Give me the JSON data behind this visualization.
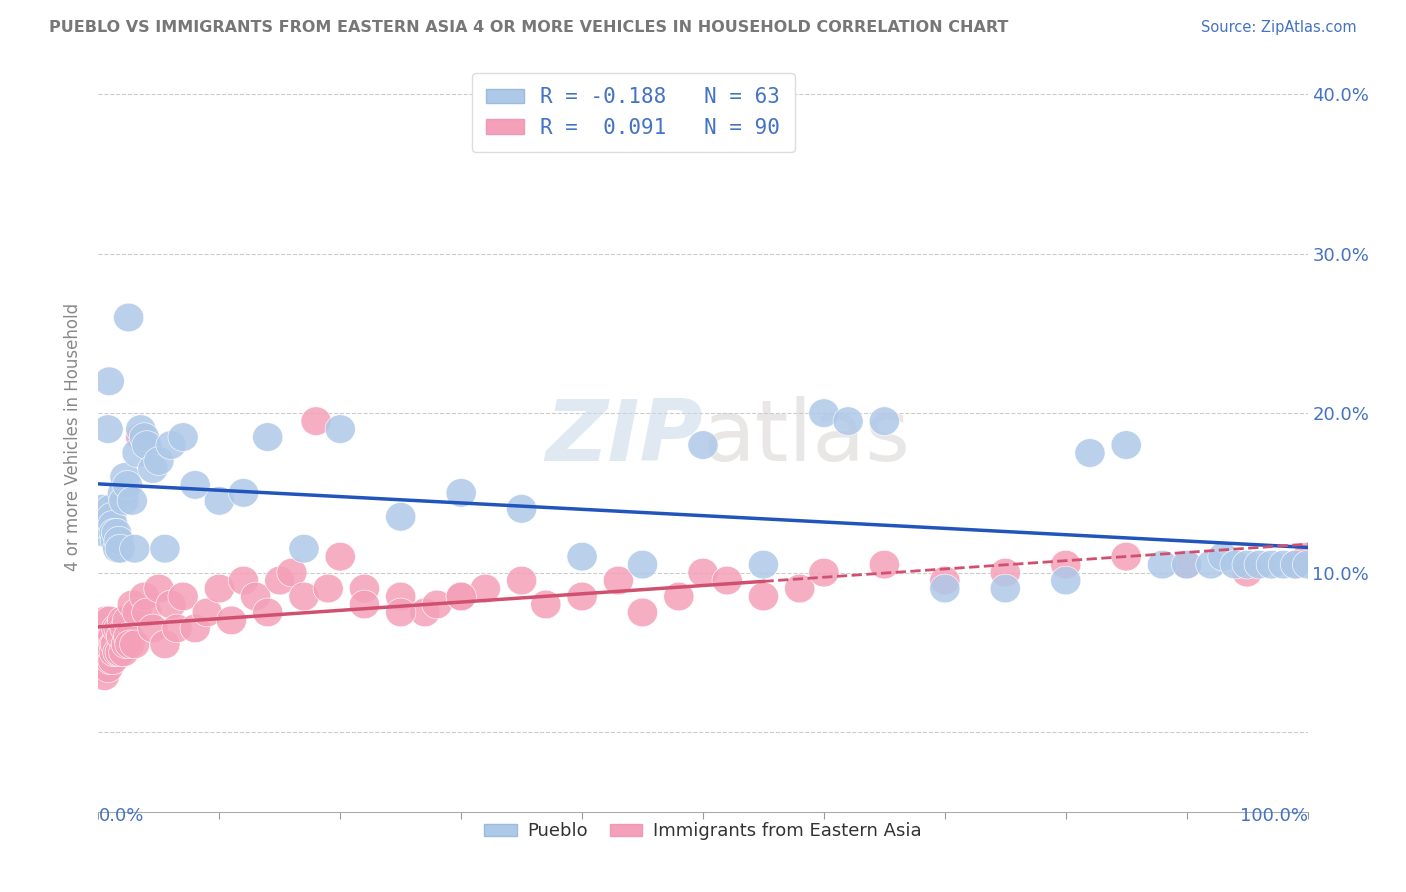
{
  "title": "PUEBLO VS IMMIGRANTS FROM EASTERN ASIA 4 OR MORE VEHICLES IN HOUSEHOLD CORRELATION CHART",
  "source": "Source: ZipAtlas.com",
  "ylabel": "4 or more Vehicles in Household",
  "legend_series1": "Pueblo",
  "legend_series2": "Immigrants from Eastern Asia",
  "legend_r1": "R = -0.188",
  "legend_n1": "N = 63",
  "legend_r2": "R =  0.091",
  "legend_n2": "N = 90",
  "blue_scatter_color": "#aec8e8",
  "pink_scatter_color": "#f4a0b8",
  "blue_line_color": "#2255bb",
  "pink_line_color": "#d05070",
  "title_color": "#777777",
  "axis_tick_color": "#4472c4",
  "background_color": "#ffffff",
  "grid_color": "#cccccc",
  "xlim": [
    0,
    100
  ],
  "ylim": [
    -5,
    42
  ],
  "ytick_positions": [
    0,
    10,
    20,
    30,
    40
  ],
  "ytick_labels": [
    "",
    "10.0%",
    "20.0%",
    "30.0%",
    "40.0%"
  ],
  "pueblo_x": [
    0.3,
    0.4,
    0.5,
    0.6,
    0.8,
    0.9,
    1.0,
    1.1,
    1.2,
    1.3,
    1.4,
    1.5,
    1.6,
    1.7,
    1.8,
    2.0,
    2.1,
    2.2,
    2.4,
    2.5,
    2.8,
    3.0,
    3.2,
    3.5,
    3.8,
    4.0,
    4.5,
    5.0,
    5.5,
    6.0,
    7.0,
    8.0,
    10.0,
    12.0,
    14.0,
    17.0,
    20.0,
    25.0,
    30.0,
    35.0,
    40.0,
    45.0,
    50.0,
    55.0,
    60.0,
    62.0,
    65.0,
    70.0,
    75.0,
    80.0,
    82.0,
    85.0,
    88.0,
    90.0,
    92.0,
    93.0,
    94.0,
    95.0,
    96.0,
    97.0,
    98.0,
    99.0,
    100.0
  ],
  "pueblo_y": [
    14.0,
    13.5,
    12.5,
    13.0,
    19.0,
    22.0,
    14.0,
    13.5,
    13.0,
    12.5,
    12.0,
    12.5,
    11.5,
    12.0,
    11.5,
    15.0,
    14.5,
    16.0,
    15.5,
    26.0,
    14.5,
    11.5,
    17.5,
    19.0,
    18.5,
    18.0,
    16.5,
    17.0,
    11.5,
    18.0,
    18.5,
    15.5,
    14.5,
    15.0,
    18.5,
    11.5,
    19.0,
    13.5,
    15.0,
    14.0,
    11.0,
    10.5,
    18.0,
    10.5,
    20.0,
    19.5,
    19.5,
    9.0,
    9.0,
    9.5,
    17.5,
    18.0,
    10.5,
    10.5,
    10.5,
    11.0,
    10.5,
    10.5,
    10.5,
    10.5,
    10.5,
    10.5,
    10.5
  ],
  "immigrants_x": [
    0.1,
    0.2,
    0.3,
    0.4,
    0.4,
    0.5,
    0.5,
    0.6,
    0.6,
    0.7,
    0.7,
    0.8,
    0.8,
    0.9,
    0.9,
    1.0,
    1.0,
    1.1,
    1.1,
    1.2,
    1.2,
    1.3,
    1.3,
    1.4,
    1.5,
    1.6,
    1.7,
    1.8,
    1.9,
    2.0,
    2.1,
    2.2,
    2.3,
    2.4,
    2.5,
    2.6,
    2.8,
    3.0,
    3.2,
    3.5,
    3.8,
    4.0,
    4.5,
    5.0,
    5.5,
    6.0,
    6.5,
    7.0,
    8.0,
    9.0,
    10.0,
    11.0,
    12.0,
    13.0,
    14.0,
    15.0,
    16.0,
    17.0,
    18.0,
    19.0,
    20.0,
    22.0,
    25.0,
    27.0,
    28.0,
    30.0,
    32.0,
    35.0,
    37.0,
    40.0,
    43.0,
    45.0,
    48.0,
    50.0,
    52.0,
    55.0,
    58.0,
    60.0,
    65.0,
    70.0,
    75.0,
    80.0,
    85.0,
    90.0,
    95.0,
    99.0,
    100.0,
    22.0,
    25.0,
    30.0
  ],
  "immigrants_y": [
    6.0,
    5.0,
    4.5,
    5.5,
    4.0,
    3.5,
    6.5,
    5.0,
    7.0,
    4.5,
    6.0,
    5.5,
    4.0,
    7.0,
    5.0,
    5.5,
    4.5,
    6.0,
    5.0,
    4.5,
    6.0,
    5.5,
    5.0,
    5.5,
    6.5,
    5.0,
    6.5,
    5.0,
    6.0,
    7.0,
    5.0,
    6.5,
    5.5,
    7.0,
    6.0,
    5.5,
    8.0,
    5.5,
    7.5,
    18.5,
    8.5,
    7.5,
    6.5,
    9.0,
    5.5,
    8.0,
    6.5,
    8.5,
    6.5,
    7.5,
    9.0,
    7.0,
    9.5,
    8.5,
    7.5,
    9.5,
    10.0,
    8.5,
    19.5,
    9.0,
    11.0,
    9.0,
    8.5,
    7.5,
    8.0,
    8.5,
    9.0,
    9.5,
    8.0,
    8.5,
    9.5,
    7.5,
    8.5,
    10.0,
    9.5,
    8.5,
    9.0,
    10.0,
    10.5,
    9.5,
    10.0,
    10.5,
    11.0,
    10.5,
    10.0,
    10.5,
    11.0,
    8.0,
    7.5,
    8.5
  ]
}
